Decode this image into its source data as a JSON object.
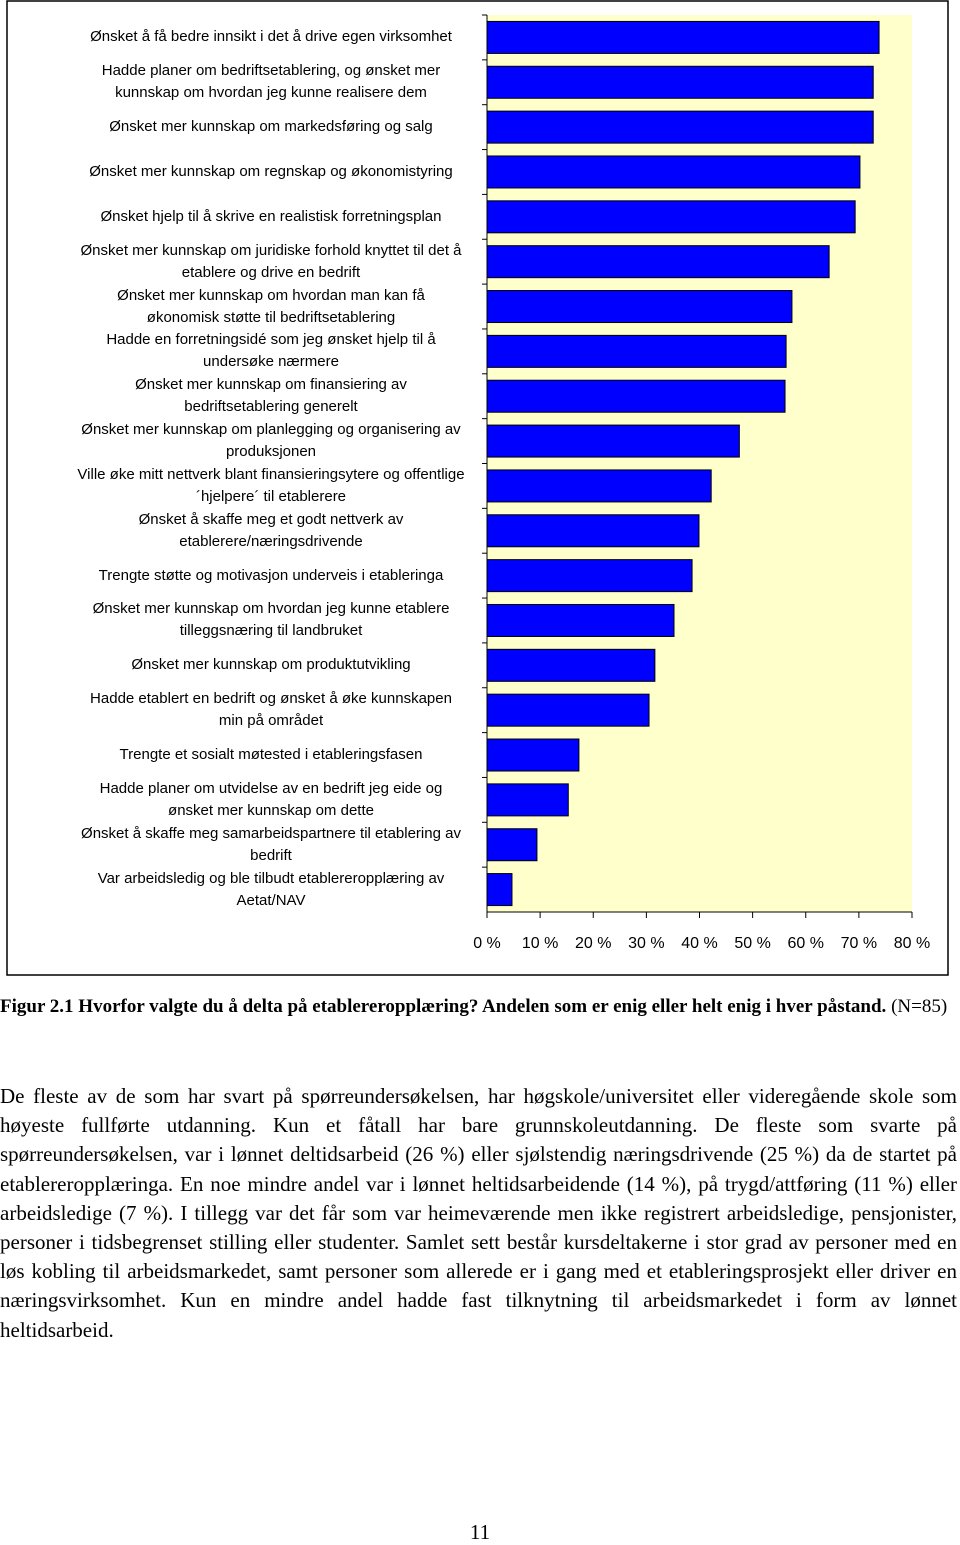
{
  "chart_data": {
    "type": "hbar",
    "categories": [
      "Ønsket å få bedre innsikt i det å drive egen virksomhet",
      "Hadde planer om bedriftsetablering, og ønsket mer\nkunnskap om hvordan jeg kunne realisere dem",
      "Ønsket mer kunnskap om markedsføring og salg",
      "Ønsket mer kunnskap om regnskap og økonomistyring",
      "Ønsket hjelp til å skrive en realistisk forretningsplan",
      "Ønsket mer kunnskap om juridiske forhold knyttet til det å\netablere og drive en bedrift",
      "Ønsket mer kunnskap om hvordan man kan få\nøkonomisk støtte til bedriftsetablering",
      "Hadde en forretningsidé som jeg ønsket hjelp til å\nundersøke nærmere",
      "Ønsket mer kunnskap om finansiering av\nbedriftsetablering generelt",
      "Ønsket mer kunnskap om planlegging og organisering av\nproduksjonen",
      "Ville øke mitt nettverk blant finansieringsytere og offentlige\n´hjelpere´ til etablerere",
      "Ønsket å skaffe meg et godt nettverk av\netablerere/næringsdrivende",
      "Trengte støtte og motivasjon underveis i etableringa",
      "Ønsket mer kunnskap om hvordan jeg kunne etablere\ntilleggsnæring til landbruket",
      "Ønsket mer kunnskap om produktutvikling",
      "Hadde etablert en bedrift og ønsket å øke kunnskapen\nmin på området",
      "Trengte et sosialt møtested i etableringsfasen",
      "Hadde planer om utvidelse av en bedrift jeg eide og\nønsket mer kunnskap om dette",
      "Ønsket å skaffe meg samarbeidspartnere til etablering av\nbedrift",
      "Var arbeidsledig og ble tilbudt etablereropplæring av\nAetat/NAV"
    ],
    "values": [
      73.8,
      72.7,
      72.7,
      70.2,
      69.3,
      64.4,
      57.4,
      56.3,
      56.1,
      47.5,
      42.2,
      39.9,
      38.6,
      35.2,
      31.6,
      30.5,
      17.3,
      15.3,
      9.4,
      4.7
    ],
    "color": "#0000ff",
    "background": "#ffffcc",
    "xlim": [
      0,
      80
    ],
    "xticks": [
      {
        "value": 0,
        "label": "0 %"
      },
      {
        "value": 10,
        "label": "10 %"
      },
      {
        "value": 20,
        "label": "20 %"
      },
      {
        "value": 30,
        "label": "30 %"
      },
      {
        "value": 40,
        "label": "40 %"
      },
      {
        "value": 50,
        "label": "50 %"
      },
      {
        "value": 60,
        "label": "60 %"
      },
      {
        "value": 70,
        "label": "70 %"
      },
      {
        "value": 80,
        "label": "80 %"
      }
    ]
  },
  "caption": {
    "title": "Figur 2.1 Hvorfor valgte du å delta på etablereropplæring? Andelen som er enig eller helt enig i hver påstand.",
    "note": "(N=85)"
  },
  "paragraph": "De fleste av de som har svart på spørreundersøkelsen, har høgskole/universitet eller videregående skole som høyeste fullførte utdanning. Kun et fåtall har bare grunnskoleutdanning. De fleste som svarte på spørreundersøkelsen, var i lønnet deltidsarbeid (26 %) eller sjølstendig næringsdrivende (25 %) da de startet på etablereropplæringa. En noe mindre andel var i lønnet heltidsarbeidende (14 %), på trygd/attføring (11 %) eller arbeidsledige (7 %). I tillegg var det får som var heimeværende men ikke registrert arbeidsledige, pensjonister, personer i tidsbegrenset stilling eller studenter. Samlet sett består kursdeltakerne i stor grad av personer med en løs kobling til arbeidsmarkedet, samt personer som allerede er i gang med et etableringsprosjekt eller driver en næringsvirksomhet. Kun en mindre andel hadde fast tilknytning til arbeidsmarkedet i form av lønnet heltidsarbeid.",
  "page_number": "11"
}
